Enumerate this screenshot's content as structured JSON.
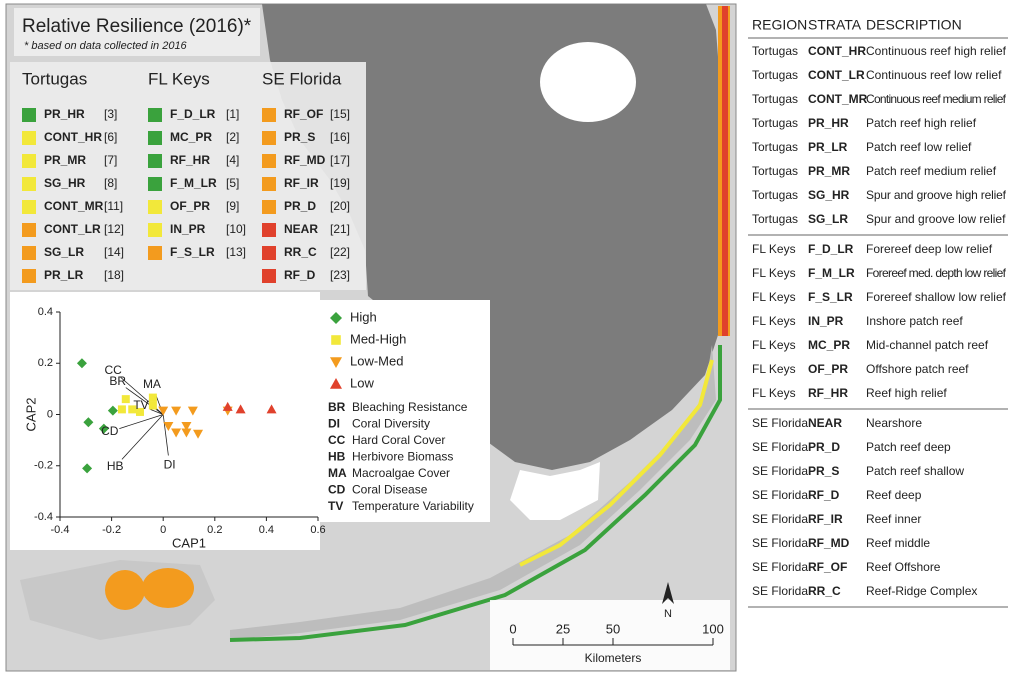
{
  "title": "Relative Resilience (2016)*",
  "subtitle": "* based on data collected in 2016",
  "legend": {
    "groups": [
      {
        "name": "Tortugas",
        "items": [
          {
            "code": "PR_HR",
            "index": "[3]",
            "color": "#3aa23d"
          },
          {
            "code": "CONT_HR",
            "index": "[6]",
            "color": "#f2e83a"
          },
          {
            "code": "PR_MR",
            "index": "[7]",
            "color": "#f2e83a"
          },
          {
            "code": "SG_HR",
            "index": "[8]",
            "color": "#f2e83a"
          },
          {
            "code": "CONT_MR",
            "index": "[11]",
            "color": "#f2e83a"
          },
          {
            "code": "CONT_LR",
            "index": "[12]",
            "color": "#f39b1e"
          },
          {
            "code": "SG_LR",
            "index": "[14]",
            "color": "#f39b1e"
          },
          {
            "code": "PR_LR",
            "index": "[18]",
            "color": "#f39b1e"
          }
        ]
      },
      {
        "name": "FL Keys",
        "items": [
          {
            "code": "F_D_LR",
            "index": "[1]",
            "color": "#3aa23d"
          },
          {
            "code": "MC_PR",
            "index": "[2]",
            "color": "#3aa23d"
          },
          {
            "code": "RF_HR",
            "index": "[4]",
            "color": "#3aa23d"
          },
          {
            "code": "F_M_LR",
            "index": "[5]",
            "color": "#3aa23d"
          },
          {
            "code": "OF_PR",
            "index": "[9]",
            "color": "#f2e83a"
          },
          {
            "code": "IN_PR",
            "index": "[10]",
            "color": "#f2e83a"
          },
          {
            "code": "F_S_LR",
            "index": "[13]",
            "color": "#f39b1e"
          }
        ]
      },
      {
        "name": "SE Florida",
        "items": [
          {
            "code": "RF_OF",
            "index": "[15]",
            "color": "#f39b1e"
          },
          {
            "code": "PR_S",
            "index": "[16]",
            "color": "#f39b1e"
          },
          {
            "code": "RF_MD",
            "index": "[17]",
            "color": "#f39b1e"
          },
          {
            "code": "RF_IR",
            "index": "[19]",
            "color": "#f39b1e"
          },
          {
            "code": "PR_D",
            "index": "[20]",
            "color": "#f39b1e"
          },
          {
            "code": "NEAR",
            "index": "[21]",
            "color": "#e0412c"
          },
          {
            "code": "RR_C",
            "index": "[22]",
            "color": "#e0412c"
          },
          {
            "code": "RF_D",
            "index": "[23]",
            "color": "#e0412c"
          }
        ]
      }
    ]
  },
  "table": {
    "header": [
      "REGION",
      "STRATA",
      "DESCRIPTION"
    ],
    "rows": [
      [
        "Tortugas",
        "CONT_HR",
        "Continuous reef high relief"
      ],
      [
        "Tortugas",
        "CONT_LR",
        "Continuous reef low relief"
      ],
      [
        "Tortugas",
        "CONT_MR",
        "Continuous reef medium relief"
      ],
      [
        "Tortugas",
        "PR_HR",
        "Patch reef high relief"
      ],
      [
        "Tortugas",
        "PR_LR",
        "Patch reef low relief"
      ],
      [
        "Tortugas",
        "PR_MR",
        "Patch reef medium relief"
      ],
      [
        "Tortugas",
        "SG_HR",
        "Spur and groove high relief"
      ],
      [
        "Tortugas",
        "SG_LR",
        "Spur and groove low relief"
      ],
      [
        "FL Keys",
        "F_D_LR",
        "Forereef deep low relief"
      ],
      [
        "FL Keys",
        "F_M_LR",
        "Forereef med. depth low relief"
      ],
      [
        "FL Keys",
        "F_S_LR",
        "Forereef shallow low relief"
      ],
      [
        "FL Keys",
        "IN_PR",
        "Inshore patch reef"
      ],
      [
        "FL Keys",
        "MC_PR",
        "Mid-channel patch reef"
      ],
      [
        "FL Keys",
        "OF_PR",
        "Offshore patch reef"
      ],
      [
        "FL Keys",
        "RF_HR",
        "Reef high relief"
      ],
      [
        "SE Florida",
        "NEAR",
        "Nearshore"
      ],
      [
        "SE Florida",
        "PR_D",
        "Patch reef deep"
      ],
      [
        "SE Florida",
        "PR_S",
        "Patch reef shallow"
      ],
      [
        "SE Florida",
        "RF_D",
        "Reef deep"
      ],
      [
        "SE Florida",
        "RF_IR",
        "Reef inner"
      ],
      [
        "SE Florida",
        "RF_MD",
        "Reef middle"
      ],
      [
        "SE Florida",
        "RF_OF",
        "Reef Offshore"
      ],
      [
        "SE Florida",
        "RR_C",
        "Reef-Ridge Complex"
      ]
    ]
  },
  "chart_data": {
    "type": "scatter",
    "xlabel": "CAP1",
    "ylabel": "CAP2",
    "xlim": [
      -0.4,
      0.6
    ],
    "ylim": [
      -0.4,
      0.4
    ],
    "xticks": [
      -0.4,
      -0.2,
      0,
      0.2,
      0.4,
      0.6
    ],
    "yticks": [
      -0.4,
      -0.2,
      0,
      0.2,
      0.4
    ],
    "series": [
      {
        "name": "High",
        "color": "#3aa23d",
        "marker": "diamond",
        "x": [
          -0.315,
          -0.29,
          -0.23,
          -0.195,
          -0.295
        ],
        "values": [
          0.2,
          -0.03,
          -0.055,
          0.015,
          -0.21
        ]
      },
      {
        "name": "Med-High",
        "color": "#f2e83a",
        "marker": "square",
        "x": [
          -0.145,
          -0.16,
          -0.12,
          -0.04,
          -0.04,
          -0.09
        ],
        "values": [
          0.06,
          0.02,
          0.02,
          0.066,
          0.035,
          0.01
        ]
      },
      {
        "name": "Low-Med",
        "color": "#f39b1e",
        "marker": "triangle-down",
        "x": [
          0.0,
          0.05,
          0.02,
          0.05,
          0.09,
          0.115,
          0.135,
          0.09,
          0.25
        ],
        "values": [
          0.015,
          0.015,
          -0.045,
          -0.07,
          -0.045,
          0.015,
          -0.075,
          -0.07,
          0.015
        ]
      },
      {
        "name": "Low",
        "color": "#e0412c",
        "marker": "triangle-up",
        "x": [
          0.25,
          0.3,
          0.42
        ],
        "values": [
          0.03,
          0.02,
          0.02
        ]
      }
    ],
    "vectors": [
      {
        "name": "CC",
        "x": -0.165,
        "y": 0.145
      },
      {
        "name": "BR",
        "x": -0.145,
        "y": 0.105
      },
      {
        "name": "MA",
        "x": -0.03,
        "y": 0.08
      },
      {
        "name": "TV",
        "x": -0.05,
        "y": 0.02
      },
      {
        "name": "CD",
        "x": -0.17,
        "y": -0.055
      },
      {
        "name": "HB",
        "x": -0.16,
        "y": -0.175
      },
      {
        "name": "DI",
        "x": 0.02,
        "y": -0.16
      }
    ],
    "vector_legend": [
      {
        "abbr": "BR",
        "name": "Bleaching Resistance"
      },
      {
        "abbr": "DI",
        "name": "Coral Diversity"
      },
      {
        "abbr": "CC",
        "name": "Hard Coral Cover"
      },
      {
        "abbr": "HB",
        "name": "Herbivore Biomass"
      },
      {
        "abbr": "MA",
        "name": "Macroalgae Cover"
      },
      {
        "abbr": "CD",
        "name": "Coral Disease"
      },
      {
        "abbr": "TV",
        "name": "Temperature Variability"
      }
    ]
  },
  "scale_bar": {
    "ticks": [
      0,
      25,
      50,
      100
    ],
    "label": "Kilometers"
  },
  "north": "N"
}
